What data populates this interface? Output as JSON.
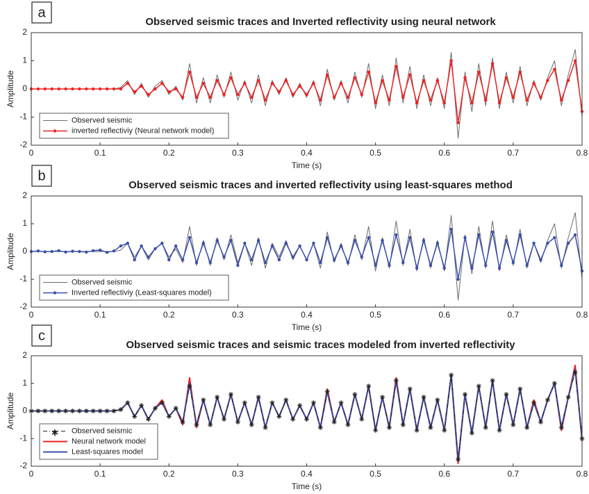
{
  "chart_data": [
    {
      "type": "line",
      "label": "a",
      "title": "Observed seismic traces and Inverted reflectivity using neural network",
      "xlabel": "Time (s)",
      "ylabel": "Amplitude",
      "xlim": [
        0,
        0.8
      ],
      "xticks": [
        0,
        0.1,
        0.2,
        0.3,
        0.4,
        0.5,
        0.6,
        0.7,
        0.8
      ],
      "ylim": [
        -2,
        2
      ],
      "yticks": [
        -2,
        -1,
        0,
        1,
        2
      ],
      "legend": "lower left",
      "x": [
        0,
        0.01,
        0.02,
        0.03,
        0.04,
        0.05,
        0.06,
        0.07,
        0.08,
        0.09,
        0.1,
        0.11,
        0.12,
        0.13,
        0.14,
        0.15,
        0.16,
        0.17,
        0.18,
        0.19,
        0.2,
        0.21,
        0.22,
        0.23,
        0.24,
        0.25,
        0.26,
        0.27,
        0.28,
        0.29,
        0.3,
        0.31,
        0.32,
        0.33,
        0.34,
        0.35,
        0.36,
        0.37,
        0.38,
        0.39,
        0.4,
        0.41,
        0.42,
        0.43,
        0.44,
        0.45,
        0.46,
        0.47,
        0.48,
        0.49,
        0.5,
        0.51,
        0.52,
        0.53,
        0.54,
        0.55,
        0.56,
        0.57,
        0.58,
        0.59,
        0.6,
        0.61,
        0.62,
        0.63,
        0.64,
        0.65,
        0.66,
        0.67,
        0.68,
        0.69,
        0.7,
        0.71,
        0.72,
        0.73,
        0.74,
        0.75,
        0.76,
        0.77,
        0.78,
        0.79,
        0.8
      ],
      "series": [
        {
          "name": "Observed seismic",
          "color": "#6b6b6b",
          "marker": "none",
          "linestyle": "solid",
          "width": 1,
          "values": [
            0,
            0,
            0,
            0,
            0,
            0,
            0,
            0,
            0,
            0,
            0,
            0,
            0,
            0.05,
            0.3,
            -0.2,
            0.2,
            -0.3,
            0.1,
            0.3,
            -0.2,
            0.1,
            -0.4,
            0.9,
            -0.5,
            0.4,
            -0.5,
            0.5,
            -0.3,
            0.6,
            -0.4,
            0.3,
            -0.5,
            0.5,
            -0.6,
            0.3,
            -0.2,
            0.4,
            -0.3,
            0.2,
            -0.3,
            0.3,
            -0.6,
            0.7,
            -0.4,
            0.3,
            -0.5,
            0.6,
            -0.3,
            0.9,
            -0.7,
            0.5,
            -0.6,
            1.1,
            -0.5,
            0.8,
            -0.7,
            0.5,
            -0.6,
            0.4,
            -0.7,
            1.3,
            -1.75,
            0.6,
            -0.8,
            0.9,
            -0.6,
            1.1,
            -0.7,
            0.6,
            -0.5,
            0.8,
            -0.6,
            0.3,
            -0.4,
            0.4,
            1.0,
            -0.6,
            0.5,
            1.4,
            -1.0
          ]
        },
        {
          "name": "inverted reflectiviy (Neural network model)",
          "color": "#ee2222",
          "marker": "dot",
          "linestyle": "solid",
          "width": 1.5,
          "values": [
            0,
            0,
            0,
            0,
            0,
            0,
            0,
            0,
            0,
            0,
            0,
            0,
            0,
            0,
            0.2,
            -0.1,
            0.1,
            -0.2,
            0,
            0.2,
            -0.1,
            0,
            -0.3,
            0.6,
            -0.3,
            0.2,
            -0.3,
            0.3,
            -0.2,
            0.4,
            -0.2,
            0.2,
            -0.3,
            0.3,
            -0.4,
            0.2,
            -0.1,
            0.3,
            -0.2,
            0.1,
            -0.2,
            0.2,
            -0.4,
            0.5,
            -0.3,
            0.2,
            -0.3,
            0.4,
            -0.2,
            0.6,
            -0.5,
            0.3,
            -0.4,
            0.8,
            -0.3,
            0.5,
            -0.5,
            0.3,
            -0.4,
            0.3,
            -0.5,
            1.0,
            -1.2,
            0.4,
            -0.5,
            0.6,
            -0.4,
            0.9,
            -0.5,
            0.4,
            -0.3,
            0.6,
            -0.4,
            0.2,
            -0.3,
            0.3,
            0.7,
            -0.4,
            0.3,
            1.0,
            -0.8
          ]
        }
      ]
    },
    {
      "type": "line",
      "label": "b",
      "title": "Observed seismic traces and inverted reflectivity using least-squares method",
      "xlabel": "Time (s)",
      "ylabel": "Amplitude",
      "xlim": [
        0,
        0.8
      ],
      "xticks": [
        0,
        0.1,
        0.2,
        0.3,
        0.4,
        0.5,
        0.6,
        0.7,
        0.8
      ],
      "ylim": [
        -2,
        2
      ],
      "yticks": [
        -2,
        -1,
        0,
        1,
        2
      ],
      "legend": "lower left",
      "x": [
        0,
        0.01,
        0.02,
        0.03,
        0.04,
        0.05,
        0.06,
        0.07,
        0.08,
        0.09,
        0.1,
        0.11,
        0.12,
        0.13,
        0.14,
        0.15,
        0.16,
        0.17,
        0.18,
        0.19,
        0.2,
        0.21,
        0.22,
        0.23,
        0.24,
        0.25,
        0.26,
        0.27,
        0.28,
        0.29,
        0.3,
        0.31,
        0.32,
        0.33,
        0.34,
        0.35,
        0.36,
        0.37,
        0.38,
        0.39,
        0.4,
        0.41,
        0.42,
        0.43,
        0.44,
        0.45,
        0.46,
        0.47,
        0.48,
        0.49,
        0.5,
        0.51,
        0.52,
        0.53,
        0.54,
        0.55,
        0.56,
        0.57,
        0.58,
        0.59,
        0.6,
        0.61,
        0.62,
        0.63,
        0.64,
        0.65,
        0.66,
        0.67,
        0.68,
        0.69,
        0.7,
        0.71,
        0.72,
        0.73,
        0.74,
        0.75,
        0.76,
        0.77,
        0.78,
        0.79,
        0.8
      ],
      "series": [
        {
          "name": "Observed seismic",
          "color": "#6b6b6b",
          "marker": "none",
          "linestyle": "solid",
          "width": 1,
          "values": [
            0,
            0,
            0,
            0,
            0,
            0,
            0,
            0,
            0,
            0,
            0,
            0,
            0,
            0.05,
            0.3,
            -0.2,
            0.2,
            -0.3,
            0.1,
            0.3,
            -0.2,
            0.1,
            -0.4,
            0.9,
            -0.5,
            0.4,
            -0.5,
            0.5,
            -0.3,
            0.6,
            -0.4,
            0.3,
            -0.5,
            0.5,
            -0.6,
            0.3,
            -0.2,
            0.4,
            -0.3,
            0.2,
            -0.3,
            0.3,
            -0.6,
            0.7,
            -0.4,
            0.3,
            -0.5,
            0.6,
            -0.3,
            0.9,
            -0.7,
            0.5,
            -0.6,
            1.1,
            -0.5,
            0.8,
            -0.7,
            0.5,
            -0.6,
            0.4,
            -0.7,
            1.3,
            -1.75,
            0.6,
            -0.8,
            0.9,
            -0.6,
            1.1,
            -0.7,
            0.6,
            -0.5,
            0.8,
            -0.6,
            0.3,
            -0.4,
            0.4,
            1.0,
            -0.6,
            0.5,
            1.4,
            -1.0
          ]
        },
        {
          "name": "Inverted reflectiviy (Least-squares model)",
          "color": "#3a4fa8",
          "marker": "dot",
          "linestyle": "solid",
          "width": 1.5,
          "values": [
            0,
            0.02,
            -0.01,
            0,
            0.03,
            -0.02,
            0.01,
            0,
            -0.02,
            0.03,
            0.05,
            -0.03,
            0.02,
            0.2,
            0.3,
            -0.3,
            0.2,
            -0.2,
            0.1,
            0.3,
            -0.3,
            0.2,
            -0.3,
            0.5,
            -0.4,
            0.3,
            -0.4,
            0.4,
            -0.2,
            0.4,
            -0.5,
            0.3,
            -0.3,
            0.4,
            -0.4,
            0.2,
            -0.3,
            0.3,
            -0.2,
            0.2,
            -0.3,
            0.3,
            -0.4,
            0.5,
            -0.3,
            0.2,
            -0.4,
            0.4,
            -0.2,
            0.5,
            -0.5,
            0.4,
            -0.5,
            0.6,
            -0.4,
            0.5,
            -0.6,
            0.4,
            -0.5,
            0.3,
            -0.6,
            0.8,
            -1.0,
            0.5,
            -0.6,
            0.6,
            -0.5,
            0.7,
            -0.6,
            0.4,
            -0.4,
            0.6,
            -0.5,
            0.3,
            -0.3,
            0.3,
            0.5,
            -0.5,
            0.3,
            0.6,
            -0.7
          ]
        }
      ]
    },
    {
      "type": "line",
      "label": "c",
      "title": "Observed seismic traces and seismic traces modeled from inverted reflectivity",
      "xlabel": "Time (s)",
      "ylabel": "Amplitude",
      "xlim": [
        0,
        0.8
      ],
      "xticks": [
        0,
        0.1,
        0.2,
        0.3,
        0.4,
        0.5,
        0.6,
        0.7,
        0.8
      ],
      "ylim": [
        -2,
        2
      ],
      "yticks": [
        -2,
        -1,
        0,
        1,
        2
      ],
      "legend": "lower left",
      "x": [
        0,
        0.01,
        0.02,
        0.03,
        0.04,
        0.05,
        0.06,
        0.07,
        0.08,
        0.09,
        0.1,
        0.11,
        0.12,
        0.13,
        0.14,
        0.15,
        0.16,
        0.17,
        0.18,
        0.19,
        0.2,
        0.21,
        0.22,
        0.23,
        0.24,
        0.25,
        0.26,
        0.27,
        0.28,
        0.29,
        0.3,
        0.31,
        0.32,
        0.33,
        0.34,
        0.35,
        0.36,
        0.37,
        0.38,
        0.39,
        0.4,
        0.41,
        0.42,
        0.43,
        0.44,
        0.45,
        0.46,
        0.47,
        0.48,
        0.49,
        0.5,
        0.51,
        0.52,
        0.53,
        0.54,
        0.55,
        0.56,
        0.57,
        0.58,
        0.59,
        0.6,
        0.61,
        0.62,
        0.63,
        0.64,
        0.65,
        0.66,
        0.67,
        0.68,
        0.69,
        0.7,
        0.71,
        0.72,
        0.73,
        0.74,
        0.75,
        0.76,
        0.77,
        0.78,
        0.79,
        0.8
      ],
      "series": [
        {
          "name": "Neural network model",
          "color": "#ee2222",
          "marker": "none",
          "linestyle": "solid",
          "width": 2,
          "values": [
            0,
            0,
            0,
            0,
            0,
            0,
            0,
            0,
            0,
            0,
            0,
            0,
            0,
            0.05,
            0.3,
            -0.2,
            0.2,
            -0.3,
            0.1,
            0.4,
            -0.2,
            0.1,
            -0.5,
            1.2,
            -0.6,
            0.4,
            -0.5,
            0.5,
            -0.3,
            0.6,
            -0.4,
            0.3,
            -0.5,
            0.5,
            -0.6,
            0.3,
            -0.2,
            0.4,
            -0.3,
            0.2,
            -0.3,
            0.3,
            -0.6,
            0.8,
            -0.4,
            0.3,
            -0.5,
            0.6,
            -0.3,
            0.9,
            -0.7,
            0.5,
            -0.6,
            1.2,
            -0.5,
            0.8,
            -0.7,
            0.5,
            -0.6,
            0.4,
            -0.7,
            1.3,
            -1.9,
            0.6,
            -0.8,
            0.9,
            -0.6,
            1.1,
            -0.7,
            0.6,
            -0.5,
            0.8,
            -0.6,
            0.4,
            -0.4,
            0.4,
            1.0,
            -0.7,
            0.5,
            1.65,
            -1.1
          ]
        },
        {
          "name": "Least-squares model",
          "color": "#3a4fa8",
          "marker": "none",
          "linestyle": "solid",
          "width": 2,
          "values": [
            0,
            0,
            0,
            0,
            0,
            0,
            0,
            0,
            0,
            0,
            0,
            0,
            0,
            0.05,
            0.3,
            -0.2,
            0.2,
            -0.3,
            0.1,
            0.3,
            -0.2,
            0.1,
            -0.4,
            1.0,
            -0.5,
            0.4,
            -0.5,
            0.5,
            -0.3,
            0.6,
            -0.4,
            0.3,
            -0.5,
            0.5,
            -0.6,
            0.3,
            -0.2,
            0.4,
            -0.3,
            0.2,
            -0.3,
            0.3,
            -0.6,
            0.7,
            -0.4,
            0.3,
            -0.5,
            0.6,
            -0.3,
            0.9,
            -0.7,
            0.5,
            -0.6,
            1.1,
            -0.5,
            0.8,
            -0.7,
            0.5,
            -0.6,
            0.4,
            -0.7,
            1.3,
            -1.8,
            0.6,
            -0.8,
            0.9,
            -0.6,
            1.1,
            -0.7,
            0.6,
            -0.5,
            0.8,
            -0.6,
            0.3,
            -0.4,
            0.4,
            1.0,
            -0.6,
            0.5,
            1.5,
            -1.0
          ]
        },
        {
          "name": "Observed seismic",
          "color": "#222222",
          "marker": "asterisk",
          "linestyle": "dashdot",
          "width": 1,
          "values": [
            0,
            0,
            0,
            0,
            0,
            0,
            0,
            0,
            0,
            0,
            0,
            0,
            0,
            0.05,
            0.3,
            -0.2,
            0.2,
            -0.3,
            0.1,
            0.3,
            -0.2,
            0.1,
            -0.4,
            0.9,
            -0.5,
            0.4,
            -0.5,
            0.5,
            -0.3,
            0.6,
            -0.4,
            0.3,
            -0.5,
            0.5,
            -0.6,
            0.3,
            -0.2,
            0.4,
            -0.3,
            0.2,
            -0.3,
            0.3,
            -0.6,
            0.7,
            -0.4,
            0.3,
            -0.5,
            0.6,
            -0.3,
            0.9,
            -0.7,
            0.5,
            -0.6,
            1.1,
            -0.5,
            0.8,
            -0.7,
            0.5,
            -0.6,
            0.4,
            -0.7,
            1.3,
            -1.75,
            0.6,
            -0.8,
            0.9,
            -0.6,
            1.1,
            -0.7,
            0.6,
            -0.5,
            0.8,
            -0.6,
            0.3,
            -0.4,
            0.4,
            1.0,
            -0.6,
            0.5,
            1.4,
            -1.0
          ]
        }
      ]
    }
  ]
}
